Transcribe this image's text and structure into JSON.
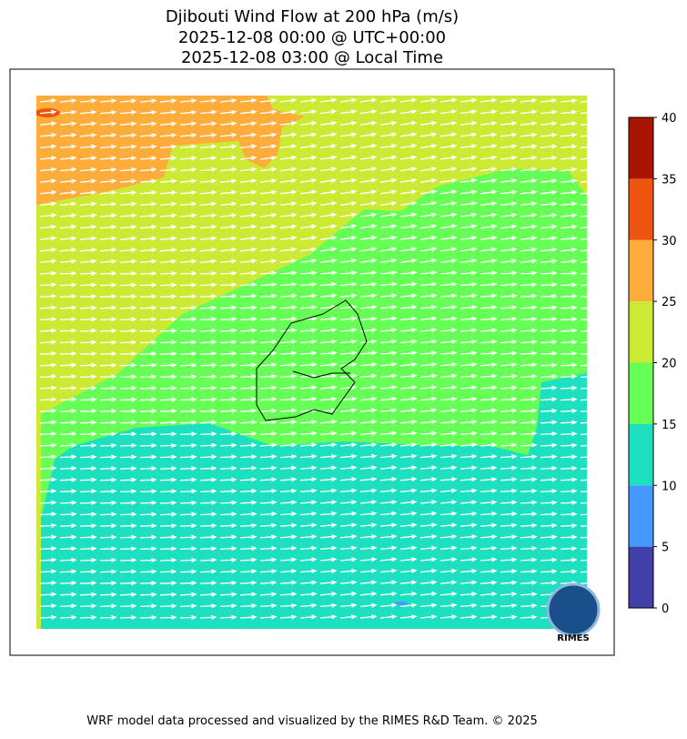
{
  "title": [
    "Djibouti Wind Flow at 200 hPa (m/s)",
    "2025-12-08 00:00 @ UTC+00:00",
    "2025-12-08 03:00 @ Local Time"
  ],
  "colorbar": {
    "lim": [
      0,
      40
    ],
    "ticks": [
      0,
      5,
      10,
      15,
      20,
      25,
      30,
      35,
      40
    ],
    "colors": [
      "#4040a8",
      "#4499ff",
      "#1de0c0",
      "#66ff55",
      "#ccea33",
      "#ffad3a",
      "#ee5511",
      "#a81500"
    ]
  },
  "logo": "RIMES",
  "footer": "WRF model data processed and visualized by the RIMES R&D Team. © 2025"
}
